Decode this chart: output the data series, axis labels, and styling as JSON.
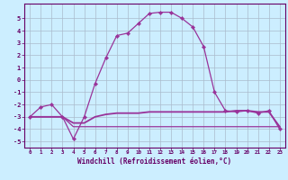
{
  "xlabel": "Windchill (Refroidissement éolien,°C)",
  "background_color": "#cceeff",
  "grid_color": "#aabbcc",
  "line_color": "#993399",
  "x_hours": [
    0,
    1,
    2,
    3,
    4,
    5,
    6,
    7,
    8,
    9,
    10,
    11,
    12,
    13,
    14,
    15,
    16,
    17,
    18,
    19,
    20,
    21,
    22,
    23
  ],
  "line1_y": [
    -3.0,
    -2.2,
    -2.0,
    -3.0,
    -4.8,
    -3.0,
    -0.3,
    1.8,
    3.6,
    3.8,
    4.6,
    5.4,
    5.5,
    5.5,
    5.0,
    4.3,
    2.7,
    -1.0,
    -2.5,
    -2.6,
    -2.5,
    -2.7,
    -2.5,
    -4.0
  ],
  "line2_y": [
    -3.0,
    -3.0,
    -3.0,
    -3.0,
    -3.5,
    -3.5,
    -3.0,
    -2.8,
    -2.7,
    -2.7,
    -2.7,
    -2.6,
    -2.6,
    -2.6,
    -2.6,
    -2.6,
    -2.6,
    -2.6,
    -2.6,
    -2.5,
    -2.5,
    -2.6,
    -2.6,
    -3.8
  ],
  "line3_y": [
    -3.0,
    -3.0,
    -3.0,
    -3.0,
    -3.8,
    -3.8,
    -3.8,
    -3.8,
    -3.8,
    -3.8,
    -3.8,
    -3.8,
    -3.8,
    -3.8,
    -3.8,
    -3.8,
    -3.8,
    -3.8,
    -3.8,
    -3.8,
    -3.8,
    -3.8,
    -3.8,
    -3.8
  ],
  "ylim": [
    -5.5,
    6.2
  ],
  "xlim": [
    -0.5,
    23.5
  ],
  "yticks": [
    -5,
    -4,
    -3,
    -2,
    -1,
    0,
    1,
    2,
    3,
    4,
    5
  ],
  "xtick_labels": [
    "0",
    "1",
    "2",
    "3",
    "4",
    "5",
    "6",
    "7",
    "8",
    "9",
    "10",
    "11",
    "12",
    "13",
    "14",
    "15",
    "16",
    "17",
    "18",
    "19",
    "20",
    "21",
    "22",
    "23"
  ]
}
